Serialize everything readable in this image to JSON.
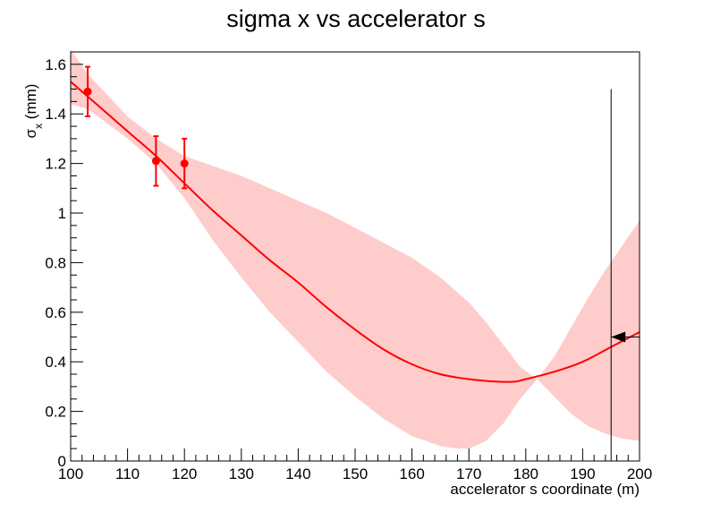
{
  "chart_data": {
    "type": "line",
    "title": "sigma x vs accelerator s",
    "xlabel": "accelerator s coordinate (m)",
    "ylabel": {
      "base": "σ",
      "sub": "x",
      "unit": " (mm)"
    },
    "xlim": [
      100,
      200
    ],
    "ylim": [
      0,
      1.65
    ],
    "x_ticks": [
      100,
      110,
      120,
      130,
      140,
      150,
      160,
      170,
      180,
      190,
      200
    ],
    "x_tick_labels": [
      "100",
      "110",
      "120",
      "130",
      "140",
      "150",
      "160",
      "170",
      "180",
      "190",
      "200"
    ],
    "y_ticks": [
      0,
      0.2,
      0.4,
      0.6,
      0.8,
      1.0,
      1.2,
      1.4,
      1.6
    ],
    "y_tick_labels": [
      "0",
      "0.2",
      "0.4",
      "0.6",
      "0.8",
      "1",
      "1.2",
      "1.4",
      "1.6"
    ],
    "grid": false,
    "legend": "none",
    "colors": {
      "fit": "#ff0000",
      "band": "#ffcccc",
      "points": "#ff0000",
      "marker": "#000000"
    },
    "measurements": {
      "name": "data",
      "points": [
        {
          "x": 103,
          "y": 1.49,
          "err": 0.1
        },
        {
          "x": 115,
          "y": 1.21,
          "err": 0.1
        },
        {
          "x": 120,
          "y": 1.2,
          "err": 0.1
        }
      ]
    },
    "fit": {
      "name": "fit",
      "x": [
        100,
        105,
        110,
        115,
        120,
        125,
        130,
        135,
        140,
        145,
        150,
        155,
        160,
        165,
        170,
        175,
        178,
        180,
        185,
        190,
        195,
        200
      ],
      "y": [
        1.53,
        1.43,
        1.33,
        1.23,
        1.12,
        1.01,
        0.91,
        0.81,
        0.72,
        0.62,
        0.53,
        0.45,
        0.39,
        0.35,
        0.33,
        0.32,
        0.32,
        0.33,
        0.36,
        0.4,
        0.46,
        0.52
      ]
    },
    "band": {
      "x": [
        100,
        103,
        110,
        115,
        120,
        125,
        130,
        135,
        140,
        145,
        150,
        155,
        160,
        165,
        168,
        170,
        173,
        176,
        179,
        182,
        185,
        188,
        191,
        194,
        197,
        200
      ],
      "upper": [
        1.66,
        1.56,
        1.39,
        1.3,
        1.23,
        1.19,
        1.15,
        1.1,
        1.05,
        1.0,
        0.94,
        0.88,
        0.82,
        0.74,
        0.68,
        0.64,
        0.56,
        0.47,
        0.38,
        0.33,
        0.42,
        0.54,
        0.66,
        0.77,
        0.87,
        0.97
      ],
      "lower": [
        1.44,
        1.42,
        1.3,
        1.2,
        1.06,
        0.89,
        0.74,
        0.6,
        0.48,
        0.36,
        0.26,
        0.17,
        0.1,
        0.06,
        0.05,
        0.05,
        0.08,
        0.15,
        0.25,
        0.33,
        0.26,
        0.19,
        0.14,
        0.11,
        0.09,
        0.08
      ]
    },
    "marker_line": {
      "x": 195,
      "y_top": 1.5
    },
    "arrow": {
      "x_from": 200,
      "x_to": 195,
      "y": 0.5
    }
  }
}
